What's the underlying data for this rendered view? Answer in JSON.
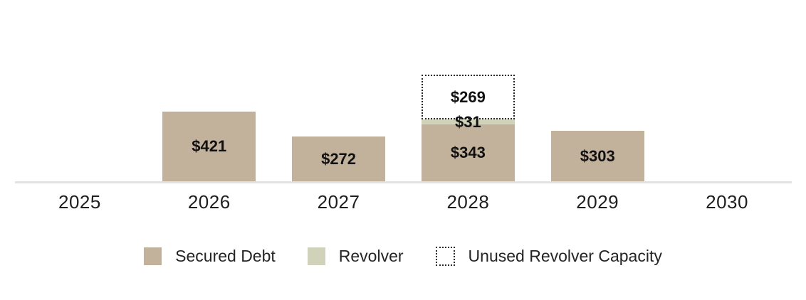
{
  "chart_data": {
    "type": "stacked-bar",
    "title": "",
    "categories": [
      "2025",
      "2026",
      "2027",
      "2028",
      "2029",
      "2030"
    ],
    "series": [
      {
        "name": "Secured Debt",
        "key": "secured",
        "values": [
          null,
          421,
          272,
          343,
          303,
          null
        ]
      },
      {
        "name": "Revolver",
        "key": "revolver",
        "values": [
          null,
          null,
          null,
          31,
          null,
          null
        ]
      },
      {
        "name": "Unused Revolver Capacity",
        "key": "unused",
        "values": [
          null,
          null,
          null,
          269,
          null,
          null
        ]
      }
    ],
    "value_prefix": "$",
    "data_labels_shown": [
      "$421",
      "$272",
      "$343",
      "$31",
      "$269",
      "$303"
    ],
    "legend": [
      {
        "label": "Secured Debt",
        "key": "secured"
      },
      {
        "label": "Revolver",
        "key": "revolver"
      },
      {
        "label": "Unused Revolver Capacity",
        "key": "unused"
      }
    ],
    "legend_position": "bottom-center",
    "grid": false,
    "y_axis_visible": false,
    "colors": {
      "secured": "#c2b19b",
      "revolver": "#d1d2ba",
      "unused_fill": "#ffffff",
      "unused_border": "#2a2a2a",
      "axis_line": "#e2e2e2",
      "label_text": "#111111"
    }
  }
}
